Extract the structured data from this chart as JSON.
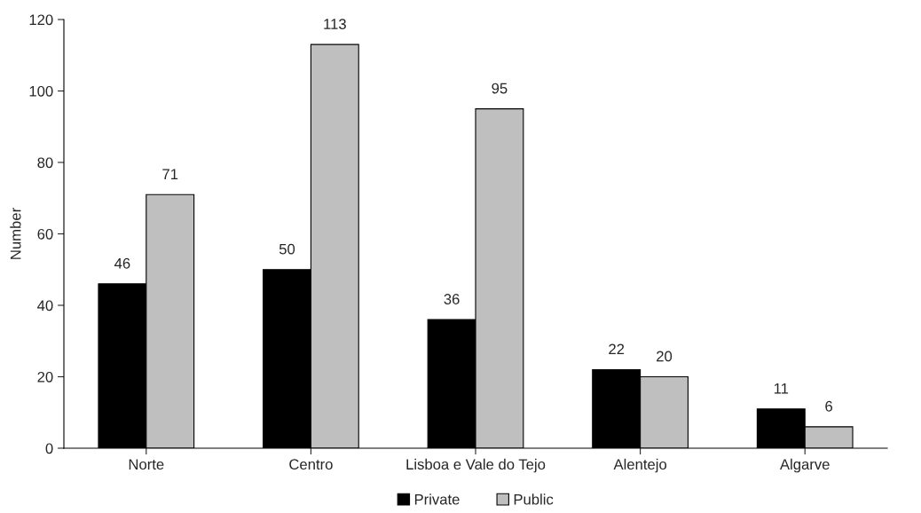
{
  "chart_data": {
    "type": "bar",
    "ylabel": "Number",
    "categories": [
      "Norte",
      "Centro",
      "Lisboa e Vale do Tejo",
      "Alentejo",
      "Algarve"
    ],
    "series": [
      {
        "name": "Private",
        "color": "#000000",
        "values": [
          46,
          50,
          36,
          22,
          11
        ]
      },
      {
        "name": "Public",
        "color": "#bfbfbf",
        "values": [
          71,
          113,
          95,
          20,
          6
        ]
      }
    ],
    "ylim": [
      0,
      120
    ],
    "yticks": [
      0,
      20,
      40,
      60,
      80,
      100,
      120
    ],
    "data_labels": true,
    "grid": false,
    "legend": "bottom"
  }
}
